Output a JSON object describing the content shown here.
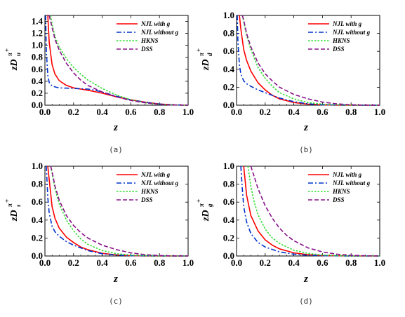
{
  "chart_data": [
    {
      "type": "line",
      "caption": "(a)",
      "xlabel": "z",
      "ylabel": {
        "base": "zD",
        "sup": "π",
        "supsup": "+",
        "sub": "u"
      },
      "xlim": [
        0.0,
        1.0
      ],
      "ylim": [
        0.0,
        1.5
      ],
      "xticks": [
        "0.0",
        "0.2",
        "0.4",
        "0.6",
        "0.8",
        "1.0"
      ],
      "yticks": [
        "0.0",
        "0.2",
        "0.4",
        "0.6",
        "0.8",
        "1.0",
        "1.2",
        "1.4"
      ],
      "yticks_values": [
        0,
        0.2,
        0.4,
        0.6,
        0.8,
        1.0,
        1.2,
        1.4
      ],
      "legend": "top-right",
      "series": [
        {
          "name": "NJL with g",
          "color": "#ff0000",
          "dash": "solid",
          "x": [
            0.02,
            0.03,
            0.05,
            0.07,
            0.1,
            0.15,
            0.2,
            0.3,
            0.4,
            0.5,
            0.6,
            0.7,
            0.8,
            0.9,
            1.0
          ],
          "y": [
            1.5,
            1.05,
            0.68,
            0.52,
            0.41,
            0.33,
            0.29,
            0.25,
            0.2,
            0.14,
            0.09,
            0.05,
            0.02,
            0.005,
            0.0
          ]
        },
        {
          "name": "NJL without g",
          "color": "#0033cc",
          "dash": "dashdot",
          "x": [
            0.005,
            0.01,
            0.02,
            0.03,
            0.05,
            0.08,
            0.1,
            0.2,
            0.3,
            0.35,
            0.4,
            0.5,
            0.6,
            0.7,
            0.8,
            0.9,
            1.0
          ],
          "y": [
            1.5,
            0.9,
            0.5,
            0.38,
            0.32,
            0.3,
            0.29,
            0.28,
            0.27,
            0.25,
            0.22,
            0.15,
            0.09,
            0.05,
            0.02,
            0.005,
            0.0
          ]
        },
        {
          "name": "HKNS",
          "color": "#33dd33",
          "dash": "dotted",
          "x": [
            0.04,
            0.05,
            0.07,
            0.1,
            0.15,
            0.2,
            0.25,
            0.3,
            0.4,
            0.5,
            0.6,
            0.7,
            0.8,
            0.9,
            1.0
          ],
          "y": [
            1.5,
            1.35,
            1.15,
            0.97,
            0.78,
            0.63,
            0.52,
            0.42,
            0.28,
            0.17,
            0.09,
            0.04,
            0.015,
            0.004,
            0.0
          ]
        },
        {
          "name": "DSS",
          "color": "#881188",
          "dash": "dashed",
          "x": [
            0.03,
            0.05,
            0.07,
            0.1,
            0.15,
            0.2,
            0.25,
            0.3,
            0.4,
            0.5,
            0.6,
            0.7,
            0.8,
            0.9,
            1.0
          ],
          "y": [
            1.5,
            1.3,
            1.1,
            0.92,
            0.7,
            0.54,
            0.42,
            0.33,
            0.22,
            0.14,
            0.08,
            0.04,
            0.015,
            0.004,
            0.0
          ]
        }
      ]
    },
    {
      "type": "line",
      "caption": "(b)",
      "xlabel": "z",
      "ylabel": {
        "base": "zD",
        "sup": "π",
        "supsup": "+",
        "sub": "d"
      },
      "xlim": [
        0.0,
        1.0
      ],
      "ylim": [
        0.0,
        1.0
      ],
      "xticks": [
        "0.0",
        "0.2",
        "0.4",
        "0.6",
        "0.8",
        "1.0"
      ],
      "yticks": [
        "0.0",
        "0.2",
        "0.4",
        "0.6",
        "0.8",
        "1.0"
      ],
      "yticks_values": [
        0,
        0.2,
        0.4,
        0.6,
        0.8,
        1.0
      ],
      "legend": "top-right",
      "series": [
        {
          "name": "NJL with g",
          "color": "#ff0000",
          "dash": "solid",
          "x": [
            0.02,
            0.03,
            0.05,
            0.07,
            0.1,
            0.15,
            0.2,
            0.25,
            0.3,
            0.4,
            0.5,
            0.6,
            0.7,
            0.8,
            1.0
          ],
          "y": [
            1.0,
            0.85,
            0.62,
            0.5,
            0.38,
            0.25,
            0.17,
            0.11,
            0.07,
            0.03,
            0.012,
            0.004,
            0.001,
            0.0,
            0.0
          ]
        },
        {
          "name": "NJL without g",
          "color": "#0033cc",
          "dash": "dashdot",
          "x": [
            0.005,
            0.01,
            0.02,
            0.03,
            0.05,
            0.07,
            0.1,
            0.15,
            0.2,
            0.3,
            0.4,
            0.5,
            0.6,
            0.8,
            1.0
          ],
          "y": [
            1.0,
            0.7,
            0.45,
            0.35,
            0.27,
            0.24,
            0.21,
            0.17,
            0.14,
            0.08,
            0.04,
            0.015,
            0.005,
            0.0,
            0.0
          ]
        },
        {
          "name": "HKNS",
          "color": "#33dd33",
          "dash": "dotted",
          "x": [
            0.04,
            0.05,
            0.07,
            0.1,
            0.15,
            0.2,
            0.25,
            0.3,
            0.4,
            0.5,
            0.6,
            0.7,
            0.8,
            1.0
          ],
          "y": [
            1.0,
            0.93,
            0.78,
            0.62,
            0.42,
            0.3,
            0.21,
            0.14,
            0.07,
            0.03,
            0.012,
            0.004,
            0.001,
            0.0
          ]
        },
        {
          "name": "DSS",
          "color": "#881188",
          "dash": "dashed",
          "x": [
            0.04,
            0.05,
            0.07,
            0.1,
            0.15,
            0.2,
            0.25,
            0.3,
            0.4,
            0.5,
            0.6,
            0.7,
            0.8,
            0.9,
            1.0
          ],
          "y": [
            1.0,
            0.95,
            0.8,
            0.65,
            0.47,
            0.35,
            0.27,
            0.2,
            0.12,
            0.07,
            0.035,
            0.015,
            0.005,
            0.001,
            0.0
          ]
        }
      ]
    },
    {
      "type": "line",
      "caption": "(c)",
      "xlabel": "z",
      "ylabel": {
        "base": "zD",
        "sup": "π",
        "supsup": "+",
        "sub": "s"
      },
      "xlim": [
        0.0,
        1.0
      ],
      "ylim": [
        0.0,
        1.0
      ],
      "xticks": [
        "0.0",
        "0.2",
        "0.4",
        "0.6",
        "0.8",
        "1.0"
      ],
      "yticks": [
        "0.0",
        "0.2",
        "0.4",
        "0.6",
        "0.8",
        "1.0"
      ],
      "yticks_values": [
        0,
        0.2,
        0.4,
        0.6,
        0.8,
        1.0
      ],
      "legend": "top-right",
      "series": [
        {
          "name": "NJL with g",
          "color": "#ff0000",
          "dash": "solid",
          "x": [
            0.02,
            0.03,
            0.05,
            0.07,
            0.1,
            0.15,
            0.2,
            0.25,
            0.3,
            0.4,
            0.5,
            0.6,
            0.7,
            0.8,
            1.0
          ],
          "y": [
            1.0,
            0.85,
            0.55,
            0.42,
            0.31,
            0.21,
            0.15,
            0.1,
            0.07,
            0.03,
            0.012,
            0.004,
            0.001,
            0.0,
            0.0
          ]
        },
        {
          "name": "NJL without g",
          "color": "#0033cc",
          "dash": "dashdot",
          "x": [
            0.01,
            0.02,
            0.03,
            0.05,
            0.07,
            0.1,
            0.15,
            0.2,
            0.3,
            0.4,
            0.5,
            0.6,
            0.8,
            1.0
          ],
          "y": [
            1.0,
            0.65,
            0.48,
            0.33,
            0.27,
            0.22,
            0.16,
            0.12,
            0.06,
            0.025,
            0.01,
            0.003,
            0.0,
            0.0
          ]
        },
        {
          "name": "HKNS",
          "color": "#33dd33",
          "dash": "dotted",
          "x": [
            0.04,
            0.05,
            0.07,
            0.1,
            0.15,
            0.2,
            0.25,
            0.3,
            0.4,
            0.5,
            0.6,
            0.7,
            0.8,
            1.0
          ],
          "y": [
            1.0,
            0.92,
            0.75,
            0.58,
            0.4,
            0.28,
            0.19,
            0.13,
            0.06,
            0.025,
            0.01,
            0.003,
            0.001,
            0.0
          ]
        },
        {
          "name": "DSS",
          "color": "#881188",
          "dash": "dashed",
          "x": [
            0.04,
            0.05,
            0.07,
            0.1,
            0.15,
            0.2,
            0.25,
            0.3,
            0.4,
            0.5,
            0.6,
            0.7,
            0.8,
            0.9,
            1.0
          ],
          "y": [
            1.0,
            0.94,
            0.78,
            0.62,
            0.45,
            0.34,
            0.26,
            0.2,
            0.12,
            0.07,
            0.035,
            0.015,
            0.005,
            0.001,
            0.0
          ]
        }
      ]
    },
    {
      "type": "line",
      "caption": "(d)",
      "xlabel": "z",
      "ylabel": {
        "base": "zD",
        "sup": "π",
        "supsup": "+",
        "sub": "g"
      },
      "xlim": [
        0.0,
        1.0
      ],
      "ylim": [
        0.0,
        1.0
      ],
      "xticks": [
        "0.0",
        "0.2",
        "0.4",
        "0.6",
        "0.8",
        "1.0"
      ],
      "yticks": [
        "0.0",
        "0.2",
        "0.4",
        "0.6",
        "0.8",
        "1.0"
      ],
      "yticks_values": [
        0,
        0.2,
        0.4,
        0.6,
        0.8,
        1.0
      ],
      "legend": "top-right",
      "series": [
        {
          "name": "NJL with g",
          "color": "#ff0000",
          "dash": "solid",
          "x": [
            0.05,
            0.07,
            0.1,
            0.15,
            0.2,
            0.25,
            0.3,
            0.4,
            0.5,
            0.6,
            0.7,
            0.8,
            1.0
          ],
          "y": [
            1.0,
            0.68,
            0.45,
            0.28,
            0.18,
            0.12,
            0.08,
            0.035,
            0.014,
            0.005,
            0.002,
            0.0,
            0.0
          ]
        },
        {
          "name": "NJL without g",
          "color": "#0033cc",
          "dash": "dashdot",
          "x": [
            0.03,
            0.04,
            0.05,
            0.07,
            0.1,
            0.15,
            0.2,
            0.3,
            0.4,
            0.5,
            0.6,
            0.8,
            1.0
          ],
          "y": [
            1.0,
            0.75,
            0.55,
            0.38,
            0.25,
            0.15,
            0.1,
            0.045,
            0.02,
            0.008,
            0.003,
            0.0,
            0.0
          ]
        },
        {
          "name": "HKNS",
          "color": "#33dd33",
          "dash": "dotted",
          "x": [
            0.08,
            0.1,
            0.12,
            0.15,
            0.2,
            0.25,
            0.3,
            0.4,
            0.5,
            0.6,
            0.7,
            0.8,
            1.0
          ],
          "y": [
            1.0,
            0.78,
            0.62,
            0.46,
            0.3,
            0.2,
            0.14,
            0.065,
            0.028,
            0.011,
            0.004,
            0.001,
            0.0
          ]
        },
        {
          "name": "DSS",
          "color": "#881188",
          "dash": "dashed",
          "x": [
            0.1,
            0.12,
            0.15,
            0.2,
            0.25,
            0.3,
            0.35,
            0.4,
            0.5,
            0.6,
            0.7,
            0.8,
            0.9,
            1.0
          ],
          "y": [
            1.0,
            0.9,
            0.75,
            0.56,
            0.42,
            0.31,
            0.23,
            0.17,
            0.09,
            0.045,
            0.02,
            0.008,
            0.002,
            0.0
          ]
        }
      ]
    }
  ]
}
